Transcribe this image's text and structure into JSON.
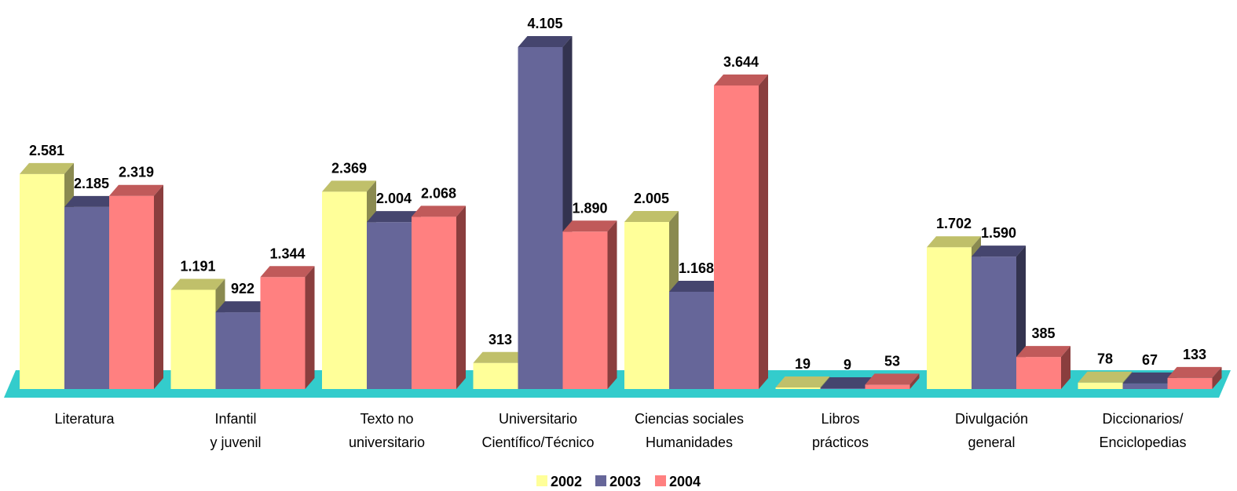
{
  "chart_data": {
    "type": "bar",
    "categories": [
      [
        "Literatura"
      ],
      [
        "Infantil",
        "y juvenil"
      ],
      [
        "Texto no",
        "universitario"
      ],
      [
        "Universitario",
        "Científico/Técnico"
      ],
      [
        "Ciencias sociales",
        "Humanidades"
      ],
      [
        "Libros",
        "prácticos"
      ],
      [
        "Divulgación",
        "general"
      ],
      [
        "Diccionarios/",
        "Enciclopedias"
      ]
    ],
    "series": [
      {
        "name": "2002",
        "values": [
          2581,
          1191,
          2369,
          313,
          2005,
          19,
          1702,
          78
        ],
        "labels": [
          "2.581",
          "1.191",
          "2.369",
          "313",
          "2.005",
          "19",
          "1.702",
          "78"
        ]
      },
      {
        "name": "2003",
        "values": [
          2185,
          922,
          2004,
          4105,
          1168,
          9,
          1590,
          67
        ],
        "labels": [
          "2.185",
          "922",
          "2.004",
          "4.105",
          "1.168",
          "9",
          "1.590",
          "67"
        ]
      },
      {
        "name": "2004",
        "values": [
          2319,
          1344,
          2068,
          1890,
          3644,
          53,
          385,
          133
        ],
        "labels": [
          "2.319",
          "1.344",
          "2.068",
          "1.890",
          "3.644",
          "53",
          "385",
          "133"
        ]
      }
    ],
    "colors": {
      "2002": {
        "front": "#ffff99",
        "top": "#c0c06a",
        "side": "#8a8a50"
      },
      "2003": {
        "front": "#666699",
        "top": "#45456e",
        "side": "#33334f"
      },
      "2004": {
        "front": "#ff8080",
        "top": "#c05a5a",
        "side": "#8a3e3e"
      },
      "floor": "#33cccc"
    },
    "ylim": [
      0,
      4105
    ],
    "legend_position": "bottom-center",
    "grid": false
  }
}
